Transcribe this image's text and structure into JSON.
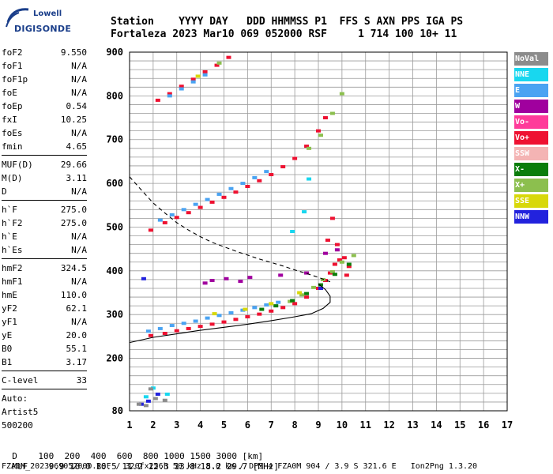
{
  "logo": {
    "top": "Lowell",
    "bottom": "DIGISONDE"
  },
  "header": {
    "line1": "Station    YYYY DAY   DDD HHMMSS P1  FFS S AXN PPS IGA PS",
    "line2": "Fortaleza 2023 Mar10 069 052000 RSF     1 714 100 10+ 11"
  },
  "params": [
    {
      "label": "foF2",
      "value": "9.550"
    },
    {
      "label": "foF1",
      "value": "N/A"
    },
    {
      "label": "foF1p",
      "value": "N/A"
    },
    {
      "label": "foE",
      "value": "N/A"
    },
    {
      "label": "foEp",
      "value": "0.54"
    },
    {
      "label": "fxI",
      "value": "10.25"
    },
    {
      "label": "foEs",
      "value": "N/A"
    },
    {
      "label": "fmin",
      "value": "4.65"
    },
    {
      "sep": true
    },
    {
      "label": "MUF(D)",
      "value": "29.66"
    },
    {
      "label": "M(D)",
      "value": "3.11"
    },
    {
      "label": "D",
      "value": "N/A"
    },
    {
      "sep": true
    },
    {
      "label": "h`F",
      "value": "275.0"
    },
    {
      "label": "h`F2",
      "value": "275.0"
    },
    {
      "label": "h`E",
      "value": "N/A"
    },
    {
      "label": "h`Es",
      "value": "N/A"
    },
    {
      "sep": true
    },
    {
      "label": "hmF2",
      "value": "324.5"
    },
    {
      "label": "hmF1",
      "value": "N/A"
    },
    {
      "label": "hmE",
      "value": "110.0"
    },
    {
      "label": "yF2",
      "value": "62.1"
    },
    {
      "label": "yF1",
      "value": "N/A"
    },
    {
      "label": "yE",
      "value": "20.0"
    },
    {
      "label": "B0",
      "value": "55.1"
    },
    {
      "label": "B1",
      "value": "3.17"
    },
    {
      "sep": true
    },
    {
      "label": "C-level",
      "value": "33"
    },
    {
      "sep": true
    },
    {
      "text": "Auto:"
    },
    {
      "text": "Artist5"
    },
    {
      "text": "500200"
    }
  ],
  "legend": [
    {
      "label": "NoVal",
      "color": "#8c8c8c"
    },
    {
      "label": "NNE",
      "color": "#18d7ef"
    },
    {
      "label": "E",
      "color": "#4aa3f2"
    },
    {
      "label": "W",
      "color": "#a0009e"
    },
    {
      "label": "Vo-",
      "color": "#ff3b9a"
    },
    {
      "label": "Vo+",
      "color": "#ee1131"
    },
    {
      "label": "SSW",
      "color": "#f4b4b4"
    },
    {
      "label": "X-",
      "color": "#0a7d0a"
    },
    {
      "label": "X+",
      "color": "#8cbf4e"
    },
    {
      "label": "SSE",
      "color": "#d8d80a"
    },
    {
      "label": "NNW",
      "color": "#2222dd"
    }
  ],
  "chart_data": {
    "type": "scatter",
    "xlim": [
      1,
      17
    ],
    "ylim": [
      80,
      900
    ],
    "xticks": [
      "1",
      "2",
      "3",
      "4",
      "5",
      "6",
      "7",
      "8",
      "9",
      "10",
      "11",
      "12",
      "13",
      "14",
      "15",
      "16",
      "17"
    ],
    "yticks": [
      "80",
      "200",
      "300",
      "400",
      "500",
      "600",
      "700",
      "800",
      "900"
    ],
    "grid": true,
    "series": [
      {
        "color": "#ee1131",
        "values": [
          [
            1.9,
            252
          ],
          [
            2.5,
            257
          ],
          [
            3,
            263
          ],
          [
            3.5,
            268
          ],
          [
            4,
            273
          ],
          [
            4.5,
            278
          ],
          [
            5,
            283
          ],
          [
            5.5,
            289
          ],
          [
            6,
            295
          ],
          [
            6.5,
            301
          ],
          [
            7,
            308
          ],
          [
            7.5,
            316
          ],
          [
            8,
            325
          ],
          [
            8.5,
            340
          ],
          [
            9,
            360
          ],
          [
            9.3,
            378
          ],
          [
            9.5,
            395
          ],
          [
            9.7,
            415
          ],
          [
            9.9,
            425
          ],
          [
            10.1,
            430
          ],
          [
            1.9,
            493
          ],
          [
            2.5,
            510
          ],
          [
            3,
            522
          ],
          [
            3.5,
            533
          ],
          [
            4,
            545
          ],
          [
            4.5,
            557
          ],
          [
            5,
            568
          ],
          [
            5.5,
            580
          ],
          [
            6,
            593
          ],
          [
            6.5,
            606
          ],
          [
            7,
            620
          ],
          [
            7.5,
            638
          ],
          [
            8,
            657
          ],
          [
            8.5,
            685
          ],
          [
            9,
            720
          ],
          [
            9.3,
            750
          ],
          [
            2.2,
            790
          ],
          [
            2.7,
            805
          ],
          [
            3.2,
            822
          ],
          [
            3.7,
            838
          ],
          [
            4.2,
            855
          ],
          [
            4.7,
            870
          ],
          [
            5.2,
            888
          ],
          [
            9.4,
            470
          ],
          [
            9.6,
            520
          ],
          [
            9.8,
            460
          ],
          [
            10.2,
            390
          ],
          [
            10.3,
            410
          ]
        ]
      },
      {
        "color": "#4aa3f2",
        "values": [
          [
            1.8,
            262
          ],
          [
            2.3,
            268
          ],
          [
            2.8,
            275
          ],
          [
            3.3,
            280
          ],
          [
            3.8,
            285
          ],
          [
            4.3,
            292
          ],
          [
            4.8,
            298
          ],
          [
            5.3,
            304
          ],
          [
            5.8,
            310
          ],
          [
            6.3,
            316
          ],
          [
            6.8,
            322
          ],
          [
            7.3,
            328
          ],
          [
            2.3,
            516
          ],
          [
            2.8,
            528
          ],
          [
            3.3,
            540
          ],
          [
            3.8,
            552
          ],
          [
            4.3,
            563
          ],
          [
            4.8,
            575
          ],
          [
            5.3,
            588
          ],
          [
            5.8,
            600
          ],
          [
            6.3,
            613
          ],
          [
            6.8,
            627
          ],
          [
            2.7,
            800
          ],
          [
            3.2,
            816
          ],
          [
            3.7,
            832
          ],
          [
            4.2,
            848
          ]
        ]
      },
      {
        "color": "#8cbf4e",
        "values": [
          [
            7.8,
            330
          ],
          [
            8.3,
            345
          ],
          [
            8.8,
            362
          ],
          [
            9.2,
            380
          ],
          [
            9.6,
            398
          ],
          [
            10,
            420
          ],
          [
            10.5,
            435
          ],
          [
            8.6,
            680
          ],
          [
            9.1,
            710
          ],
          [
            9.6,
            760
          ],
          [
            10,
            805
          ],
          [
            4.8,
            875
          ]
        ]
      },
      {
        "color": "#0a7d0a",
        "values": [
          [
            6.6,
            312
          ],
          [
            7.2,
            320
          ],
          [
            7.9,
            332
          ],
          [
            8.5,
            348
          ],
          [
            9.1,
            368
          ],
          [
            9.7,
            392
          ],
          [
            10.3,
            415
          ]
        ]
      },
      {
        "color": "#a0009e",
        "values": [
          [
            4.2,
            372
          ],
          [
            4.5,
            378
          ],
          [
            5.1,
            382
          ],
          [
            5.7,
            376
          ],
          [
            6.1,
            385
          ],
          [
            7.4,
            390
          ],
          [
            8.5,
            395
          ],
          [
            9.3,
            440
          ],
          [
            9.8,
            448
          ]
        ]
      },
      {
        "color": "#d8d80a",
        "values": [
          [
            4.6,
            302
          ],
          [
            5.9,
            312
          ],
          [
            7,
            325
          ],
          [
            8.2,
            350
          ],
          [
            3.9,
            845
          ]
        ]
      },
      {
        "color": "#2222dd",
        "values": [
          [
            1.5,
            95
          ],
          [
            1.8,
            102
          ],
          [
            2.2,
            118
          ],
          [
            1.6,
            382
          ],
          [
            9.1,
            360
          ]
        ]
      },
      {
        "color": "#18d7ef",
        "values": [
          [
            1.7,
            112
          ],
          [
            2,
            132
          ],
          [
            2.6,
            118
          ],
          [
            7.9,
            490
          ],
          [
            8.4,
            535
          ],
          [
            8.6,
            610
          ]
        ]
      },
      {
        "color": "#8c8c8c",
        "values": [
          [
            1.4,
            95
          ],
          [
            2.1,
            108
          ],
          [
            2.5,
            104
          ],
          [
            1.9,
            130
          ],
          [
            1.7,
            92
          ]
        ]
      }
    ],
    "curves": [
      {
        "name": "MUF profile",
        "style": "dashed",
        "points": [
          [
            1,
            615
          ],
          [
            1.5,
            585
          ],
          [
            2,
            555
          ],
          [
            2.5,
            532
          ],
          [
            3,
            510
          ],
          [
            3.5,
            493
          ],
          [
            4,
            478
          ],
          [
            4.5,
            465
          ],
          [
            5,
            455
          ],
          [
            5.5,
            445
          ],
          [
            6,
            436
          ],
          [
            6.5,
            427
          ],
          [
            7,
            419
          ],
          [
            7.5,
            411
          ],
          [
            8,
            402
          ],
          [
            8.5,
            394
          ],
          [
            9,
            385
          ],
          [
            9.5,
            375
          ]
        ]
      },
      {
        "name": "Ne profile",
        "style": "solid",
        "points": [
          [
            1,
            236
          ],
          [
            2,
            248
          ],
          [
            3,
            256
          ],
          [
            4,
            264
          ],
          [
            5,
            271
          ],
          [
            6,
            278
          ],
          [
            7,
            286
          ],
          [
            8,
            295
          ],
          [
            8.7,
            302
          ],
          [
            9.2,
            314
          ],
          [
            9.5,
            328
          ],
          [
            9.5,
            342
          ],
          [
            9.3,
            357
          ],
          [
            9.0,
            370
          ]
        ]
      }
    ],
    "bottom_table": {
      "d_label": "D",
      "d_values": [
        "100",
        "200",
        "400",
        "600",
        "800",
        "1000",
        "1500",
        "3000"
      ],
      "d_unit": "[km]",
      "muf_label": "MUF",
      "muf_values": [
        "9.9",
        "10.0",
        "10.5",
        "11.2",
        "12.3",
        "13.8",
        "18.2",
        "29.7"
      ],
      "muf_unit": "[MHz]"
    }
  },
  "footer": {
    "file_line": "FZA0M_2023069052000.RSF / 320fx256h 50 kHz 5.0 km / DPS-4 FZA0M 904 / 3.9 S 321.6 E   Ion2Png 1.3.20"
  }
}
